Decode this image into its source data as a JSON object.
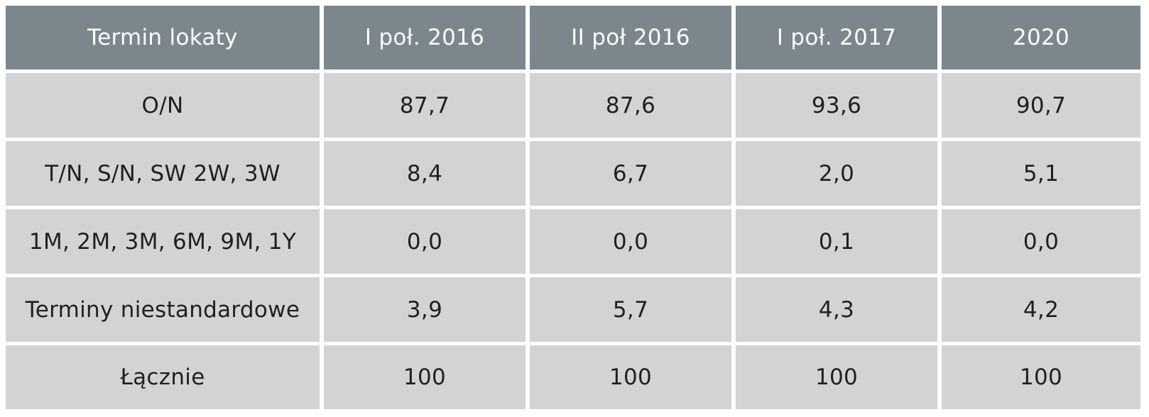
{
  "colors": {
    "header_bg": "#7b878d",
    "header_text": "#ffffff",
    "body_bg": "#d2d3d5",
    "body_text": "#231f20"
  },
  "table": {
    "headers": [
      "Termin lokaty",
      "I poł. 2016",
      "II poł 2016",
      "I poł. 2017",
      "2020"
    ],
    "rows": [
      {
        "label": "O/N",
        "values": [
          "87,7",
          "87,6",
          "93,6",
          "90,7"
        ]
      },
      {
        "label": "T/N, S/N, SW 2W, 3W",
        "values": [
          "8,4",
          "6,7",
          "2,0",
          "5,1"
        ]
      },
      {
        "label": "1M, 2M, 3M, 6M, 9M, 1Y",
        "values": [
          "0,0",
          "0,0",
          "0,1",
          "0,0"
        ]
      },
      {
        "label": "Terminy niestandardowe",
        "values": [
          "3,9",
          "5,7",
          "4,3",
          "4,2"
        ]
      },
      {
        "label": "Łącznie",
        "values": [
          "100",
          "100",
          "100",
          "100"
        ]
      }
    ]
  }
}
